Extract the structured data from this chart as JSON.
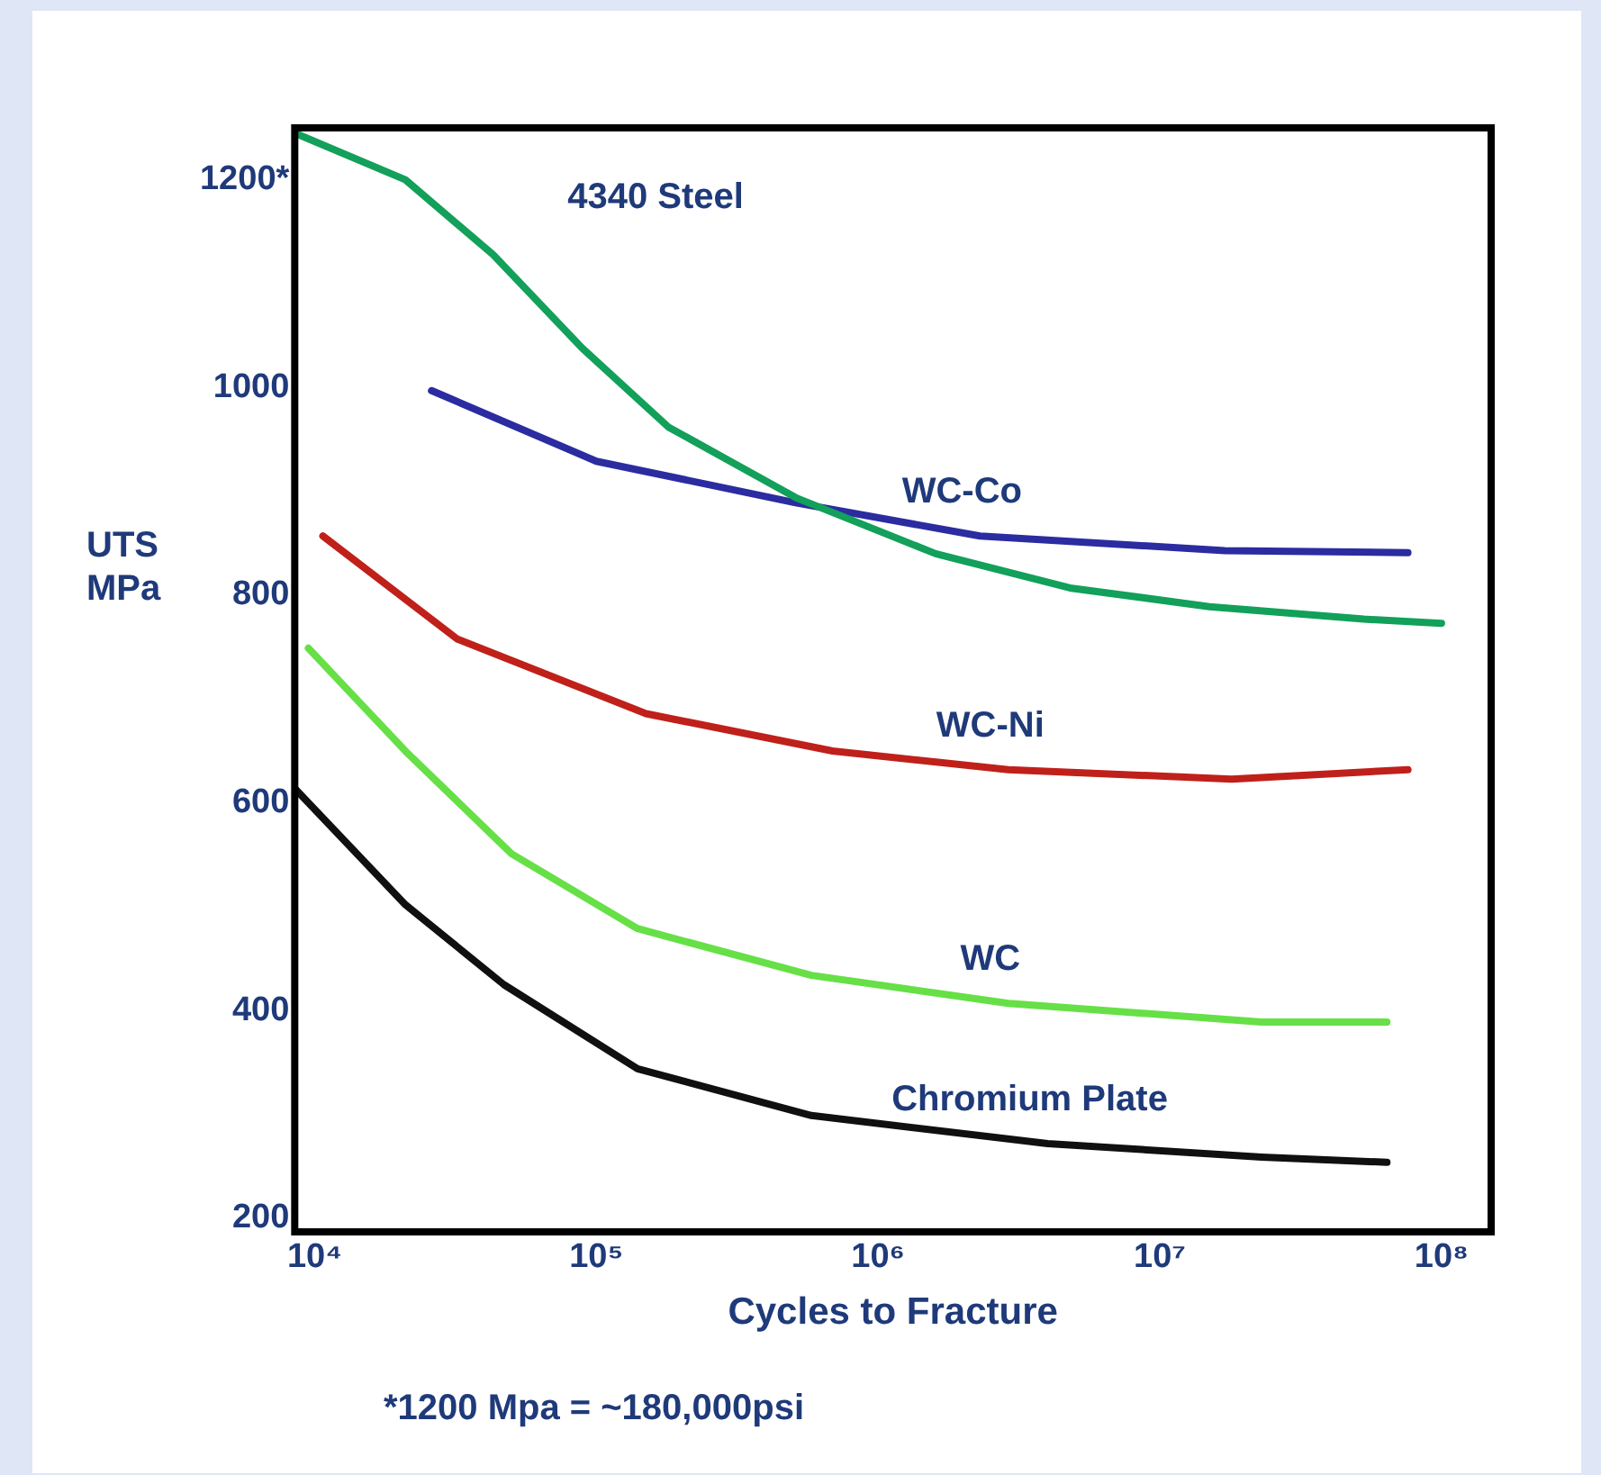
{
  "chart_data": {
    "type": "line",
    "xlabel": "Cycles to Fracture",
    "ylabel": "UTS MPa",
    "log": "x",
    "grid": false,
    "legend": false,
    "marker": "none",
    "line_style": "solid",
    "xlim": [
      8500,
      150000000
    ],
    "xticks": [
      {
        "value": 10000,
        "label": "10⁴"
      },
      {
        "value": 100000,
        "label": "10⁵"
      },
      {
        "value": 1000000,
        "label": "10⁶"
      },
      {
        "value": 10000000,
        "label": "10⁷"
      },
      {
        "value": 100000000,
        "label": "10⁸"
      }
    ],
    "ylim": [
      187,
      1250
    ],
    "yticks": [
      200,
      400,
      600,
      800,
      1000,
      {
        "value": 1200,
        "label": "1200*"
      }
    ],
    "series": [
      {
        "name": "4340 Steel",
        "color": "#12a05a",
        "x": [
          8500,
          21000,
          43000,
          89000,
          180000,
          510000,
          1600000,
          4800000,
          15000000,
          53000000,
          100000000
        ],
        "values": [
          1245,
          1200,
          1128,
          1038,
          962,
          894,
          840,
          807,
          789,
          777,
          773
        ]
      },
      {
        "name": "WC-Co",
        "color": "#2b2ca0",
        "x": [
          26000,
          100000,
          510000,
          2300000,
          17000000,
          76000000
        ],
        "values": [
          997,
          929,
          889,
          857,
          843,
          841
        ]
      },
      {
        "name": "WC-Ni",
        "color": "#c0201a",
        "x": [
          10700,
          32000,
          150000,
          690000,
          2900000,
          18000000,
          76000000
        ],
        "values": [
          857,
          758,
          686,
          650,
          632,
          623,
          632
        ]
      },
      {
        "name": "WC",
        "color": "#66e046",
        "x": [
          9500,
          21000,
          50000,
          140000,
          580000,
          2900000,
          23000000,
          64000000
        ],
        "values": [
          749,
          650,
          551,
          479,
          434,
          407,
          389,
          389
        ]
      },
      {
        "name": "Chromium Plate",
        "color": "#101010",
        "x": [
          8500,
          21000,
          47000,
          140000,
          580000,
          4000000,
          23000000,
          64000000
        ],
        "values": [
          614,
          502,
          425,
          344,
          299,
          272,
          259,
          254
        ]
      }
    ],
    "annotations": [
      "*1200 Mpa = ~180,000psi"
    ]
  }
}
